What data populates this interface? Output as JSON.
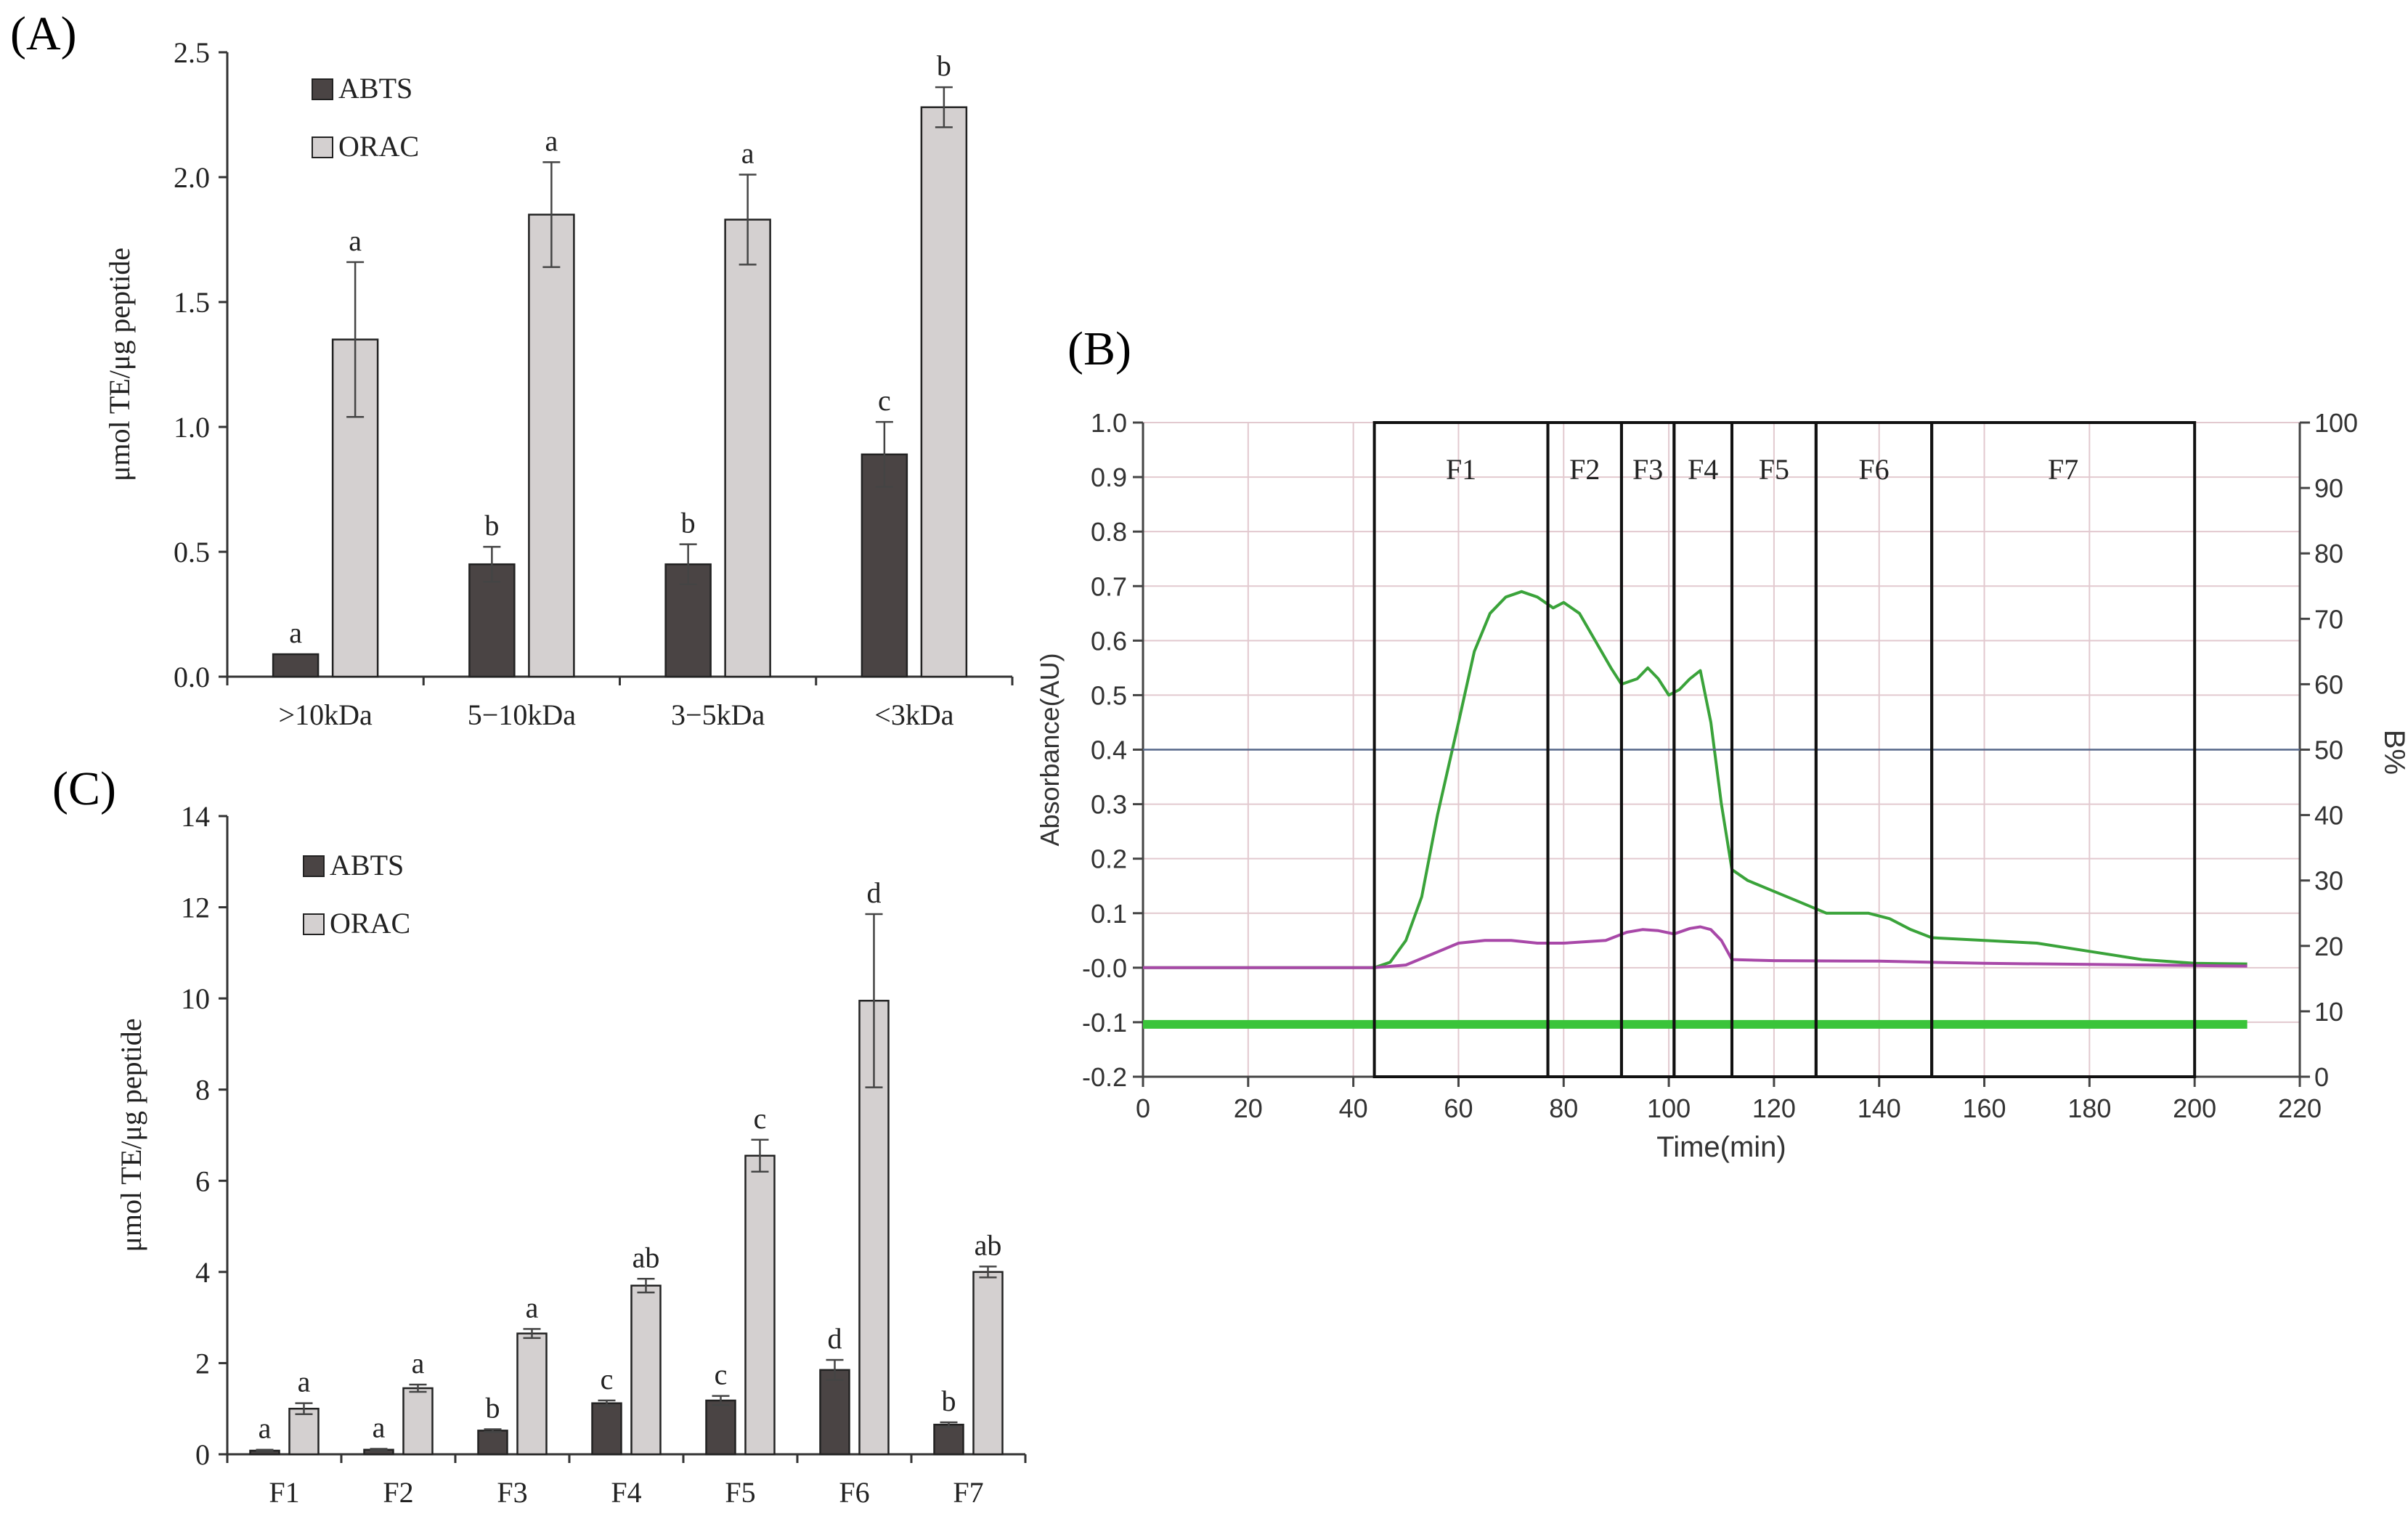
{
  "figure": {
    "panel_a_label": "(A)",
    "panel_b_label": "(B)",
    "panel_c_label": "(C)"
  },
  "chart_data": [
    {
      "id": "A",
      "type": "bar",
      "title": "",
      "xlabel": "",
      "ylabel": "μmol TE/μg peptide",
      "ylim": [
        0,
        2.5
      ],
      "yticks": [
        "0.0",
        "0.5",
        "1.0",
        "1.5",
        "2.0",
        "2.5"
      ],
      "categories": [
        ">10kDa",
        "5−10kDa",
        "3−5kDa",
        "<3kDa"
      ],
      "legend": "top-left",
      "series": [
        {
          "name": "ABTS",
          "color": "#4a4444",
          "values": [
            0.09,
            0.45,
            0.45,
            0.89
          ],
          "errors": [
            0.0,
            0.07,
            0.08,
            0.13
          ],
          "labels": [
            "a",
            "b",
            "b",
            "c"
          ]
        },
        {
          "name": "ORAC",
          "color": "#d4d0d0",
          "values": [
            1.35,
            1.85,
            1.83,
            2.28
          ],
          "errors": [
            0.31,
            0.21,
            0.18,
            0.08
          ],
          "labels": [
            "a",
            "a",
            "a",
            "b"
          ]
        }
      ]
    },
    {
      "id": "B",
      "type": "line",
      "title": "",
      "xlabel": "Time(min)",
      "ylabel": "Absorbance(AU)",
      "y2label": "B%",
      "xlim": [
        0,
        220
      ],
      "ylim": [
        -0.2,
        1.0
      ],
      "y2lim": [
        0,
        100
      ],
      "xticks": [
        "0",
        "20",
        "40",
        "60",
        "80",
        "100",
        "120",
        "140",
        "160",
        "180",
        "200",
        "220"
      ],
      "yticks": [
        "-0.2",
        "-0.1",
        "-0.0",
        "0.1",
        "0.2",
        "0.3",
        "0.4",
        "0.5",
        "0.6",
        "0.7",
        "0.8",
        "0.9",
        "1.0"
      ],
      "y2ticks": [
        "0",
        "10",
        "20",
        "30",
        "40",
        "50",
        "60",
        "70",
        "80",
        "90",
        "100"
      ],
      "fractions": [
        {
          "name": "F1",
          "start": 44,
          "end": 77
        },
        {
          "name": "F2",
          "start": 77,
          "end": 91
        },
        {
          "name": "F3",
          "start": 91,
          "end": 101
        },
        {
          "name": "F4",
          "start": 101,
          "end": 112
        },
        {
          "name": "F5",
          "start": 112,
          "end": 128
        },
        {
          "name": "F6",
          "start": 128,
          "end": 150
        },
        {
          "name": "F7",
          "start": 150,
          "end": 200
        }
      ],
      "series": [
        {
          "name": "absorbance (green)",
          "color": "#3aa33a",
          "x": [
            0,
            30,
            44,
            47,
            50,
            53,
            56,
            60,
            63,
            66,
            69,
            72,
            75,
            78,
            80,
            83,
            86,
            89,
            91,
            94,
            96,
            98,
            100,
            102,
            104,
            106,
            108,
            110,
            112,
            115,
            120,
            125,
            130,
            135,
            138,
            142,
            146,
            150,
            160,
            170,
            180,
            190,
            200,
            210
          ],
          "y": [
            0.0,
            0.0,
            0.0,
            0.01,
            0.05,
            0.13,
            0.28,
            0.45,
            0.58,
            0.65,
            0.68,
            0.69,
            0.68,
            0.66,
            0.67,
            0.65,
            0.6,
            0.55,
            0.52,
            0.53,
            0.55,
            0.53,
            0.5,
            0.51,
            0.53,
            0.545,
            0.45,
            0.3,
            0.18,
            0.16,
            0.14,
            0.12,
            0.1,
            0.1,
            0.1,
            0.09,
            0.07,
            0.055,
            0.05,
            0.045,
            0.03,
            0.015,
            0.008,
            0.007
          ]
        },
        {
          "name": "absorbance (magenta)",
          "color": "#a848a8",
          "x": [
            0,
            44,
            50,
            55,
            60,
            65,
            70,
            75,
            80,
            88,
            92,
            95,
            98,
            101,
            104,
            106,
            108,
            110,
            112,
            120,
            140,
            160,
            180,
            200,
            210
          ],
          "y": [
            0.0,
            0.0,
            0.005,
            0.025,
            0.045,
            0.05,
            0.05,
            0.045,
            0.045,
            0.05,
            0.065,
            0.07,
            0.068,
            0.062,
            0.072,
            0.075,
            0.07,
            0.05,
            0.015,
            0.013,
            0.012,
            0.008,
            0.006,
            0.004,
            0.003
          ]
        },
        {
          "name": "B% (flat)",
          "color": "#3ac43a",
          "axis": "y2",
          "x": [
            0,
            210
          ],
          "y": [
            8,
            8
          ]
        },
        {
          "name": "0.4 reference line",
          "color": "#556688",
          "x": [
            0,
            220
          ],
          "y": [
            0.4,
            0.4
          ]
        }
      ]
    },
    {
      "id": "C",
      "type": "bar",
      "title": "",
      "xlabel": "",
      "ylabel": "μmol TE/μg peptide",
      "ylim": [
        0,
        14
      ],
      "yticks": [
        "0",
        "2",
        "4",
        "6",
        "8",
        "10",
        "12",
        "14"
      ],
      "categories": [
        "F1",
        "F2",
        "F3",
        "F4",
        "F5",
        "F6",
        "F7"
      ],
      "legend": "top-left",
      "series": [
        {
          "name": "ABTS",
          "color": "#4a4444",
          "values": [
            0.08,
            0.1,
            0.52,
            1.12,
            1.18,
            1.85,
            0.65
          ],
          "errors": [
            0.02,
            0.02,
            0.03,
            0.06,
            0.1,
            0.22,
            0.05
          ],
          "labels": [
            "a",
            "a",
            "b",
            "c",
            "c",
            "d",
            "b"
          ]
        },
        {
          "name": "ORAC",
          "color": "#d4d0d0",
          "values": [
            1.0,
            1.45,
            2.65,
            3.7,
            6.55,
            9.95,
            4.0
          ],
          "errors": [
            0.12,
            0.08,
            0.1,
            0.15,
            0.35,
            1.9,
            0.12
          ],
          "labels": [
            "a",
            "a",
            "a",
            "ab",
            "c",
            "d",
            "ab"
          ]
        }
      ]
    }
  ]
}
